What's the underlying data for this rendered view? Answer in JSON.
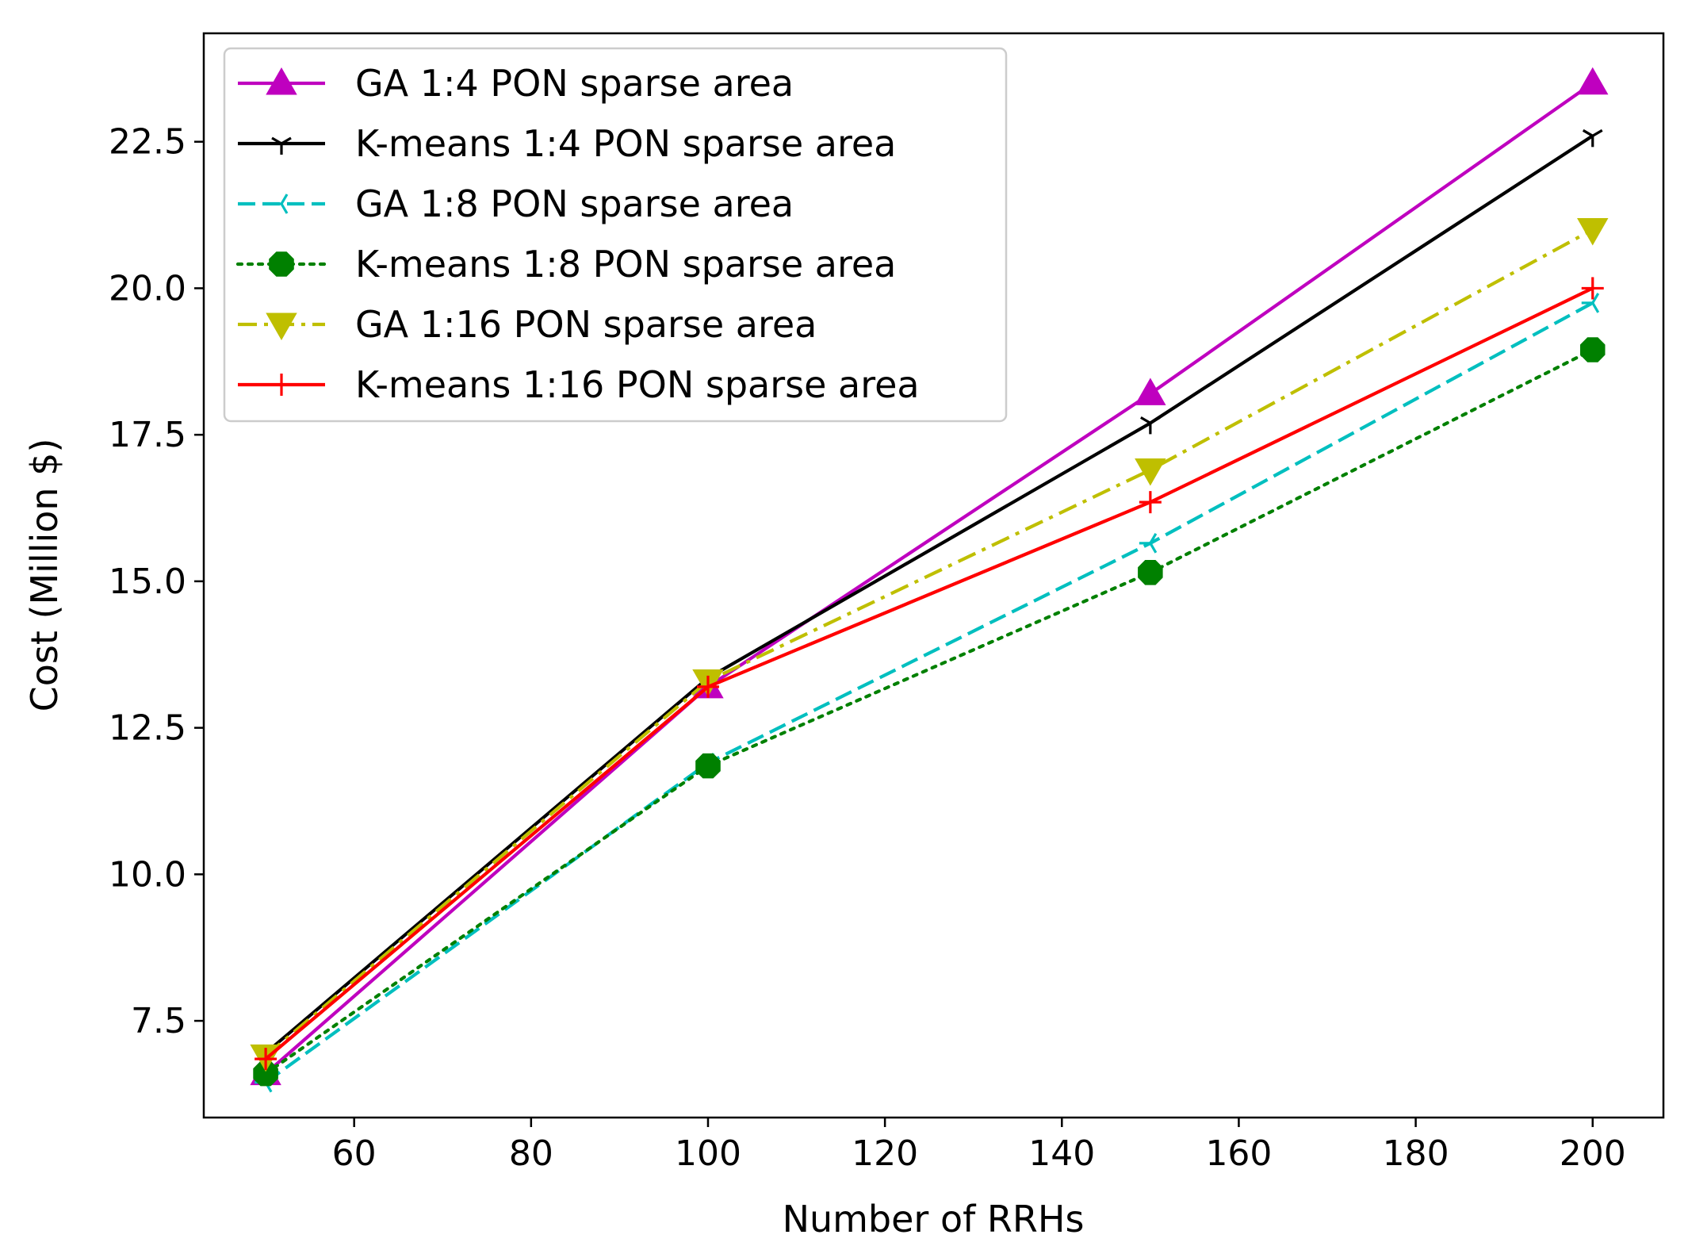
{
  "chart_data": {
    "type": "line",
    "title": "",
    "xlabel": "Number of RRHs",
    "ylabel": "Cost (Million $)",
    "xlim": [
      43,
      208
    ],
    "ylim": [
      5.85,
      24.35
    ],
    "xticks": [
      60,
      80,
      100,
      120,
      140,
      160,
      180,
      200
    ],
    "xtick_labels": [
      "60",
      "80",
      "100",
      "120",
      "140",
      "160",
      "180",
      "200"
    ],
    "yticks": [
      7.5,
      10.0,
      12.5,
      15.0,
      17.5,
      20.0,
      22.5
    ],
    "ytick_labels": [
      "7.5",
      "10.0",
      "12.5",
      "15.0",
      "17.5",
      "20.0",
      "22.5"
    ],
    "legend_position": "top-left",
    "x": [
      50,
      100,
      150,
      200
    ],
    "series": [
      {
        "name": "GA 1:4 PON sparse area",
        "values": [
          6.6,
          13.2,
          18.2,
          23.5
        ],
        "color": "#bf00bf",
        "linestyle": "solid",
        "marker": "triangle-up"
      },
      {
        "name": "K-means 1:4 PON sparse area",
        "values": [
          6.95,
          13.35,
          17.7,
          22.6
        ],
        "color": "#000000",
        "linestyle": "solid",
        "marker": "tri-down"
      },
      {
        "name": "GA 1:8 PON sparse area",
        "values": [
          6.45,
          11.9,
          15.65,
          19.75
        ],
        "color": "#00bfbf",
        "linestyle": "dashed",
        "marker": "tri-left"
      },
      {
        "name": "K-means 1:8 PON sparse area",
        "values": [
          6.6,
          11.85,
          15.15,
          18.95
        ],
        "color": "#008000",
        "linestyle": "dotted",
        "marker": "octagon"
      },
      {
        "name": "GA 1:16 PON sparse area",
        "values": [
          6.9,
          13.3,
          16.9,
          21.0
        ],
        "color": "#bfbf00",
        "linestyle": "dashdot",
        "marker": "triangle-down"
      },
      {
        "name": "K-means 1:16 PON sparse area",
        "values": [
          6.85,
          13.2,
          16.35,
          20.0
        ],
        "color": "#ff0000",
        "linestyle": "solid",
        "marker": "plus"
      }
    ]
  }
}
